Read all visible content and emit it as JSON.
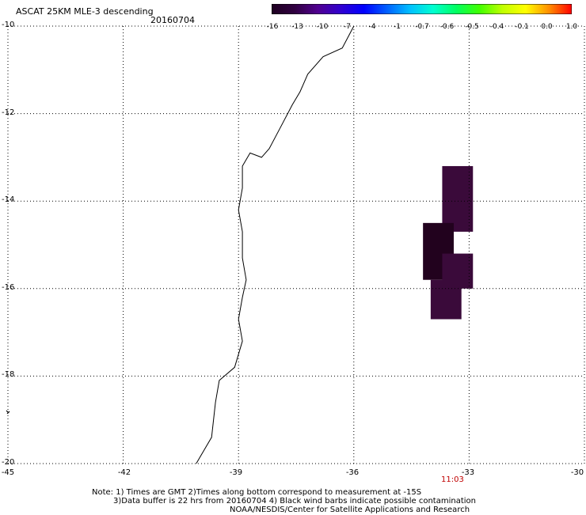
{
  "header": {
    "title": "ASCAT 25KM MLE-3 descending",
    "date": "20160704"
  },
  "colorbar": {
    "labels": [
      "-16",
      "-13",
      "-10",
      "-7",
      "-4",
      "-1",
      "-0.7",
      "-0.6",
      "-0.5",
      "-0.4",
      "-0.1",
      "0.0",
      "1.0"
    ],
    "colors": [
      "#1e0020",
      "#300040",
      "#500090",
      "#3000d0",
      "#0000ff",
      "#0060ff",
      "#00c0ff",
      "#00ffd0",
      "#00ff60",
      "#40ff00",
      "#c0ff00",
      "#ffff00",
      "#ff9000",
      "#ff0000"
    ]
  },
  "axes": {
    "y_labels": [
      "-10",
      "-12",
      "-14",
      "-16",
      "-18",
      "-20"
    ],
    "x_labels": [
      "-45",
      "-42",
      "-39",
      "-36",
      "-33",
      "-30"
    ],
    "lon_range": [
      -45,
      -30
    ],
    "lat_range": [
      -20,
      -10
    ],
    "grid": true
  },
  "time_label": "11:03",
  "notes": [
    "Note: 1) Times are GMT 2)Times along bottom correspond to measurement at -15S",
    "3)Data buffer is 22 hrs from 20160704 4) Black wind barbs indicate possible contamination",
    "NOAA/NESDIS/Center for Satellite Applications and Research"
  ],
  "chart_data": {
    "type": "heatmap",
    "title": "ASCAT 25KM MLE-3 descending",
    "x_axis": "longitude",
    "y_axis": "latitude",
    "xlim": [
      -45,
      -30
    ],
    "ylim": [
      -20,
      -10
    ],
    "cells": [
      {
        "lon_min": -33.7,
        "lon_max": -32.9,
        "lat_min": -14.7,
        "lat_max": -13.2,
        "color": "#3a0a3a"
      },
      {
        "lon_min": -34.2,
        "lon_max": -33.4,
        "lat_min": -15.8,
        "lat_max": -14.5,
        "color": "#22021e"
      },
      {
        "lon_min": -33.7,
        "lon_max": -32.9,
        "lat_min": -16.0,
        "lat_max": -15.2,
        "color": "#3a0a3a"
      },
      {
        "lon_min": -34.0,
        "lon_max": -33.2,
        "lat_min": -16.7,
        "lat_max": -15.8,
        "color": "#3a0a3a"
      }
    ],
    "coastline": [
      [
        -36.0,
        -10.0
      ],
      [
        -36.3,
        -10.5
      ],
      [
        -36.8,
        -10.7
      ],
      [
        -37.2,
        -11.1
      ],
      [
        -37.4,
        -11.5
      ],
      [
        -37.6,
        -11.8
      ],
      [
        -37.9,
        -12.3
      ],
      [
        -38.2,
        -12.8
      ],
      [
        -38.4,
        -13.0
      ],
      [
        -38.7,
        -12.9
      ],
      [
        -38.9,
        -13.2
      ],
      [
        -38.9,
        -13.7
      ],
      [
        -39.0,
        -14.2
      ],
      [
        -38.9,
        -14.7
      ],
      [
        -38.9,
        -15.3
      ],
      [
        -38.8,
        -15.8
      ],
      [
        -38.9,
        -16.2
      ],
      [
        -39.0,
        -16.7
      ],
      [
        -38.9,
        -17.2
      ],
      [
        -39.1,
        -17.8
      ],
      [
        -39.5,
        -18.1
      ],
      [
        -39.6,
        -18.6
      ],
      [
        -39.7,
        -19.4
      ],
      [
        -39.9,
        -19.7
      ],
      [
        -40.1,
        -20.0
      ]
    ]
  }
}
